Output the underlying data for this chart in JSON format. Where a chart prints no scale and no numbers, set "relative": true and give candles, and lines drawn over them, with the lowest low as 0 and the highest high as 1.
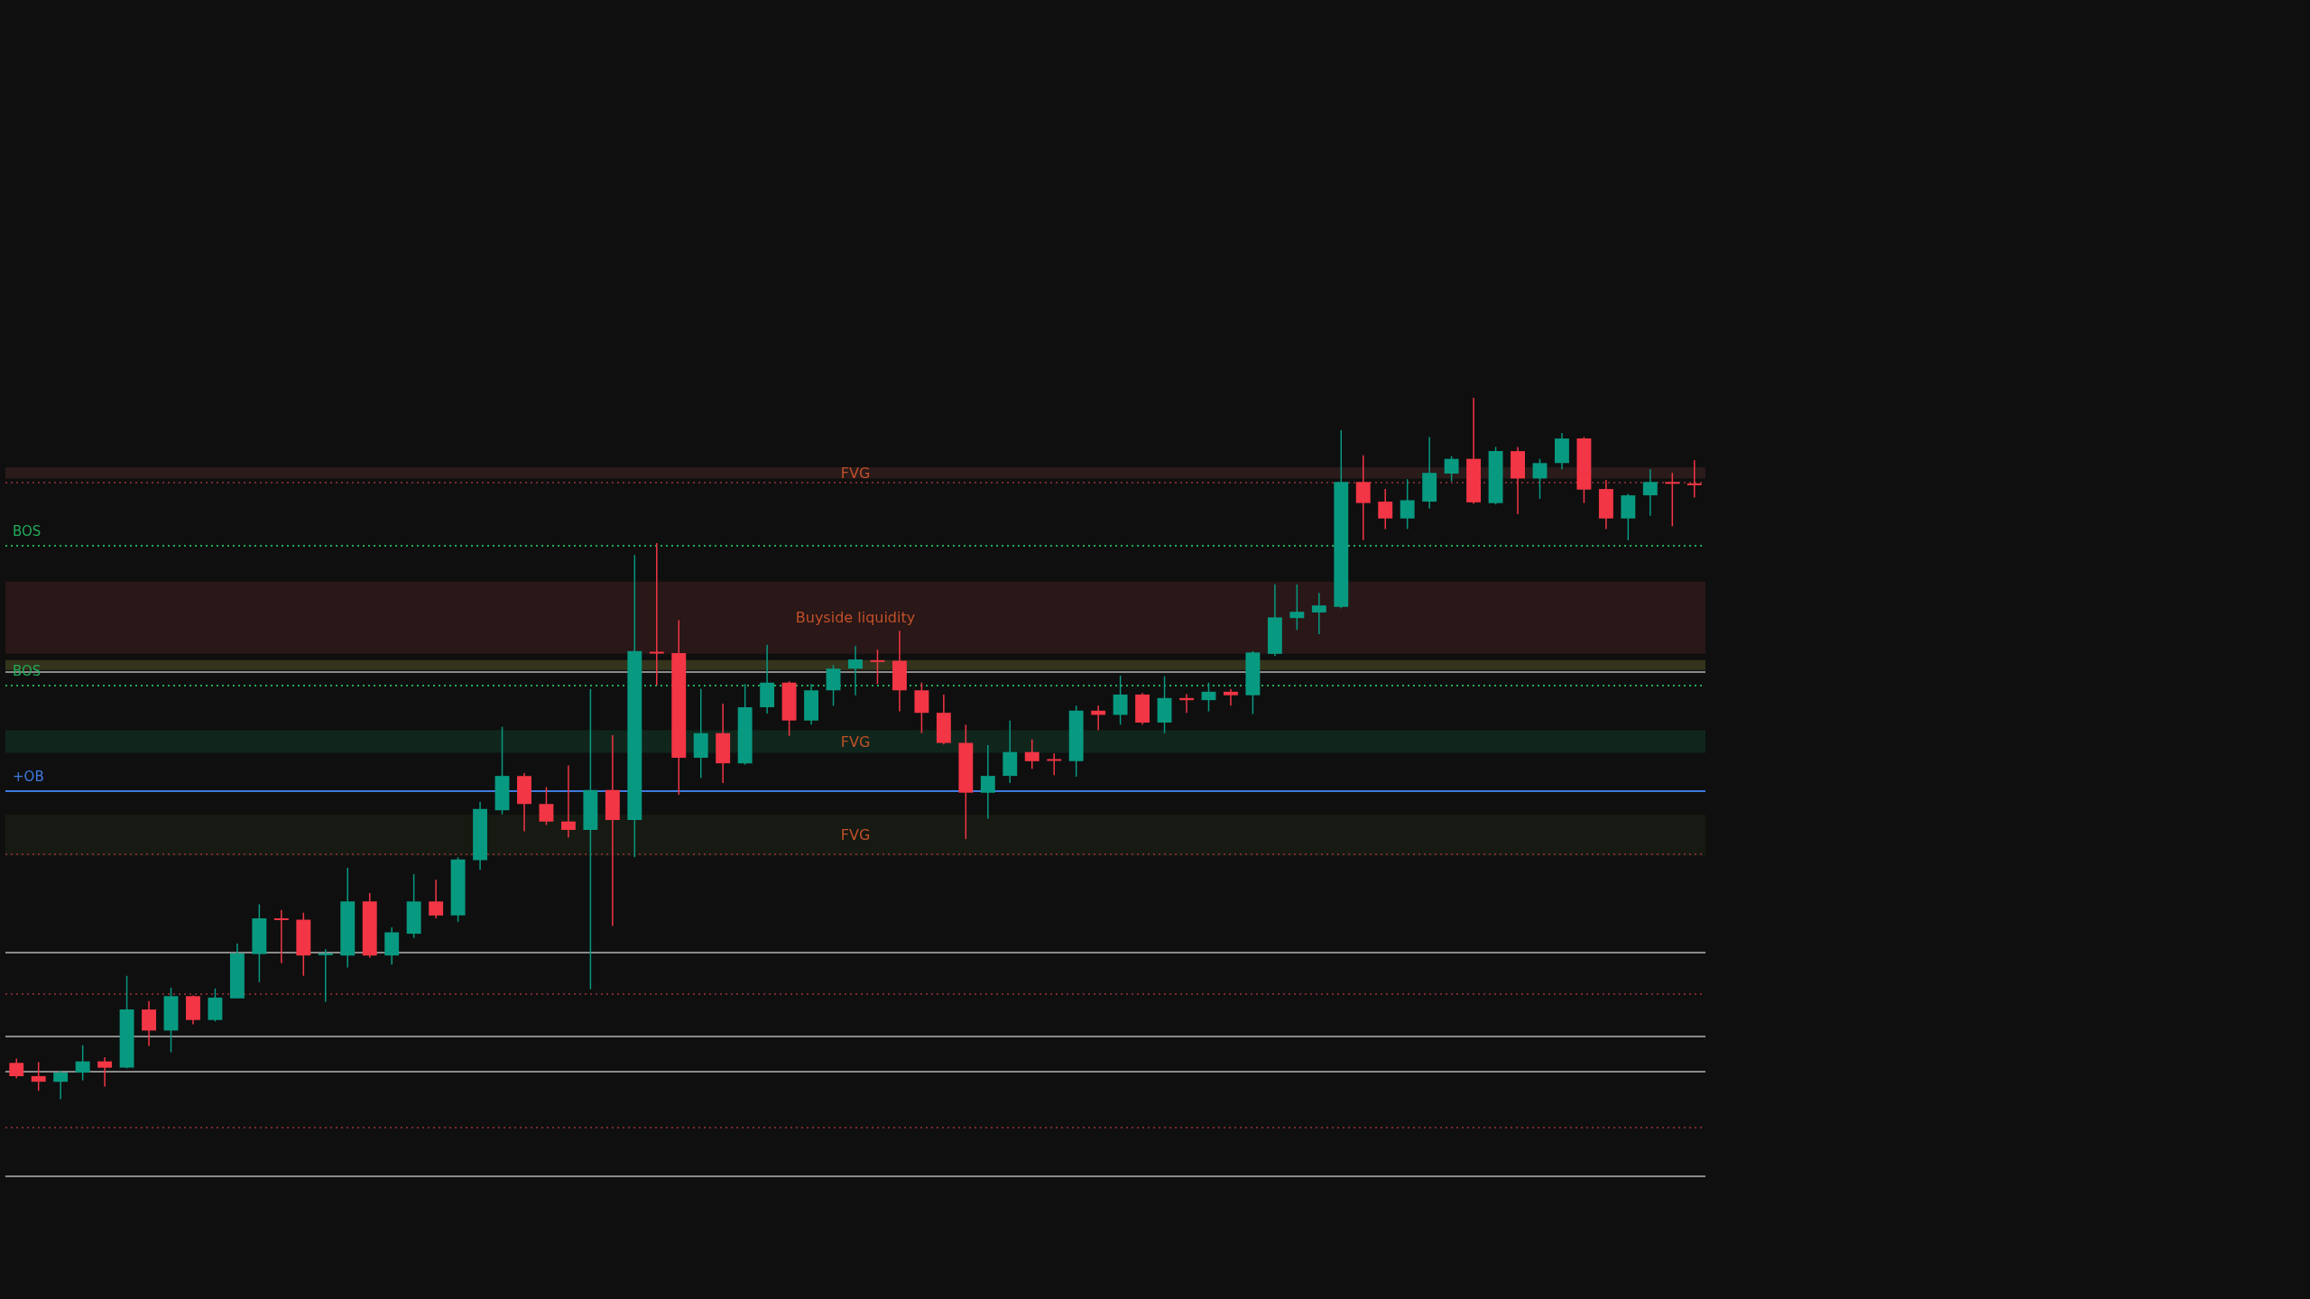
{
  "chart_data": {
    "type": "candlestick",
    "relative": true,
    "tick_labels": false,
    "categories": [
      null,
      null,
      null,
      null,
      null,
      null,
      null,
      null,
      null,
      null,
      null,
      null,
      null,
      null,
      null,
      null,
      null,
      null,
      null,
      null,
      null,
      null,
      null,
      null,
      null,
      null,
      null,
      null,
      null,
      null,
      null,
      null,
      null,
      null,
      null,
      null,
      null,
      null,
      null,
      null,
      null,
      null,
      null,
      null,
      null,
      null,
      null,
      null,
      null,
      null,
      null,
      null,
      null,
      null,
      null,
      null,
      null,
      null,
      null,
      null,
      null,
      null,
      null,
      null,
      null,
      null,
      null,
      null,
      null,
      null,
      null,
      null,
      null,
      null,
      null,
      null,
      null
    ],
    "ohlc": [
      [
        0.052,
        0.058,
        0.03,
        0.033
      ],
      [
        0.033,
        0.053,
        0.012,
        0.025
      ],
      [
        0.025,
        0.041,
        0,
        0.038
      ],
      [
        0.038,
        0.077,
        0.027,
        0.054
      ],
      [
        0.054,
        0.06,
        0.018,
        0.045
      ],
      [
        0.045,
        0.176,
        0.044,
        0.128
      ],
      [
        0.128,
        0.14,
        0.076,
        0.098
      ],
      [
        0.098,
        0.159,
        0.067,
        0.147
      ],
      [
        0.147,
        0.148,
        0.107,
        0.113
      ],
      [
        0.113,
        0.158,
        0.111,
        0.145
      ],
      [
        0.144,
        0.222,
        0.144,
        0.208
      ],
      [
        0.207,
        0.278,
        0.167,
        0.258
      ],
      [
        0.258,
        0.27,
        0.194,
        0.256
      ],
      [
        0.256,
        0.266,
        0.176,
        0.205
      ],
      [
        0.207,
        0.214,
        0.139,
        0.208
      ],
      [
        0.205,
        0.33,
        0.188,
        0.282
      ],
      [
        0.282,
        0.294,
        0.202,
        0.205
      ],
      [
        0.205,
        0.245,
        0.192,
        0.238
      ],
      [
        0.236,
        0.321,
        0.23,
        0.282
      ],
      [
        0.282,
        0.313,
        0.258,
        0.262
      ],
      [
        0.262,
        0.345,
        0.253,
        0.342
      ],
      [
        0.341,
        0.424,
        0.327,
        0.414
      ],
      [
        0.412,
        0.531,
        0.406,
        0.461
      ],
      [
        0.461,
        0.465,
        0.382,
        0.421
      ],
      [
        0.421,
        0.445,
        0.391,
        0.396
      ],
      [
        0.396,
        0.476,
        0.373,
        0.384
      ],
      [
        0.384,
        0.585,
        0.157,
        0.441
      ],
      [
        0.441,
        0.519,
        0.247,
        0.398
      ],
      [
        0.398,
        0.776,
        0.345,
        0.639
      ],
      [
        0.638,
        0.793,
        0.59,
        0.636
      ],
      [
        0.636,
        0.683,
        0.434,
        0.487
      ],
      [
        0.487,
        0.585,
        0.458,
        0.522
      ],
      [
        0.522,
        0.564,
        0.451,
        0.479
      ],
      [
        0.479,
        0.592,
        0.477,
        0.559
      ],
      [
        0.559,
        0.648,
        0.55,
        0.594
      ],
      [
        0.594,
        0.596,
        0.518,
        0.54
      ],
      [
        0.54,
        0.592,
        0.534,
        0.583
      ],
      [
        0.583,
        0.619,
        0.561,
        0.614
      ],
      [
        0.614,
        0.646,
        0.576,
        0.627
      ],
      [
        0.626,
        0.641,
        0.592,
        0.624
      ],
      [
        0.625,
        0.668,
        0.553,
        0.583
      ],
      [
        0.583,
        0.594,
        0.522,
        0.551
      ],
      [
        0.551,
        0.577,
        0.506,
        0.508
      ],
      [
        0.508,
        0.534,
        0.371,
        0.437
      ],
      [
        0.437,
        0.505,
        0.4,
        0.461
      ],
      [
        0.461,
        0.54,
        0.451,
        0.495
      ],
      [
        0.495,
        0.513,
        0.471,
        0.482
      ],
      [
        0.485,
        0.493,
        0.462,
        0.483
      ],
      [
        0.482,
        0.561,
        0.46,
        0.554
      ],
      [
        0.554,
        0.561,
        0.526,
        0.548
      ],
      [
        0.548,
        0.604,
        0.534,
        0.577
      ],
      [
        0.577,
        0.579,
        0.534,
        0.537
      ],
      [
        0.537,
        0.603,
        0.522,
        0.572
      ],
      [
        0.572,
        0.578,
        0.551,
        0.569
      ],
      [
        0.569,
        0.594,
        0.553,
        0.581
      ],
      [
        0.581,
        0.585,
        0.561,
        0.576
      ],
      [
        0.576,
        0.639,
        0.549,
        0.637
      ],
      [
        0.635,
        0.734,
        0.632,
        0.687
      ],
      [
        0.686,
        0.734,
        0.669,
        0.695
      ],
      [
        0.694,
        0.722,
        0.663,
        0.704
      ],
      [
        0.702,
        0.954,
        0.7,
        0.88
      ],
      [
        0.88,
        0.918,
        0.797,
        0.85
      ],
      [
        0.852,
        0.87,
        0.813,
        0.828
      ],
      [
        0.828,
        0.884,
        0.813,
        0.854
      ],
      [
        0.852,
        0.944,
        0.842,
        0.893
      ],
      [
        0.892,
        0.917,
        0.881,
        0.913
      ],
      [
        0.913,
        1,
        0.849,
        0.851
      ],
      [
        0.85,
        0.93,
        0.848,
        0.924
      ],
      [
        0.924,
        0.93,
        0.834,
        0.885
      ],
      [
        0.885,
        0.913,
        0.856,
        0.907
      ],
      [
        0.907,
        0.95,
        0.898,
        0.942
      ],
      [
        0.942,
        0.944,
        0.85,
        0.869
      ],
      [
        0.87,
        0.883,
        0.813,
        0.828
      ],
      [
        0.828,
        0.863,
        0.797,
        0.861
      ],
      [
        0.861,
        0.898,
        0.832,
        0.88
      ],
      [
        0.88,
        0.893,
        0.817,
        0.878
      ],
      [
        0.878,
        0.911,
        0.858,
        0.877
      ]
    ],
    "colors": [
      "#f23645",
      "#f23645",
      "#089981",
      "#089981",
      "#f23645",
      "#089981",
      "#f23645",
      "#089981",
      "#f23645",
      "#089981",
      "#089981",
      "#089981",
      "#f23645",
      "#f23645",
      "#089981",
      "#089981",
      "#f23645",
      "#089981",
      "#089981",
      "#f23645",
      "#089981",
      "#089981",
      "#089981",
      "#f23645",
      "#f23645",
      "#f23645",
      "#089981",
      "#f23645",
      "#089981",
      "#f23645",
      "#f23645",
      "#089981",
      "#f23645",
      "#089981",
      "#089981",
      "#f23645",
      "#089981",
      "#089981",
      "#089981",
      "#f23645",
      "#f23645",
      "#f23645",
      "#f23645",
      "#f23645",
      "#089981",
      "#089981",
      "#f23645",
      "#f23645",
      "#089981",
      "#f23645",
      "#089981",
      "#f23645",
      "#089981",
      "#f23645",
      "#089981",
      "#f23645",
      "#089981",
      "#089981",
      "#089981",
      "#089981",
      "#089981",
      "#f23645",
      "#f23645",
      "#089981",
      "#089981",
      "#089981",
      "#f23645",
      "#089981",
      "#f23645",
      "#089981",
      "#089981",
      "#f23645",
      "#f23645",
      "#089981",
      "#089981",
      "#f23645",
      "#f23645"
    ],
    "ref_lines": [
      {
        "axis": "y",
        "value": 0.876,
        "color": "#7a2a2e",
        "line_style": "dotted"
      },
      {
        "axis": "y",
        "value": 0.79,
        "label": "BOS",
        "color": "#22ab5a",
        "line_style": "dotted"
      },
      {
        "axis": "y",
        "value": 0.612,
        "color": "#8a8a8a",
        "line_style": "solid"
      },
      {
        "axis": "y",
        "value": 0.587,
        "label": "BOS",
        "color": "#22ab5a",
        "line_style": "dotted"
      },
      {
        "axis": "y",
        "value": 0.441,
        "label": "+OB",
        "color": "#3d7be0",
        "line_style": "solid"
      },
      {
        "axis": "y",
        "value": 0.351,
        "color": "#7a2a2e",
        "line_style": "dotted"
      },
      {
        "axis": "y",
        "value": 0.213,
        "color": "#8a8a8a",
        "line_style": "solid"
      },
      {
        "axis": "y",
        "value": 0.148,
        "color": "#7a2a2e",
        "line_style": "dotted"
      },
      {
        "axis": "y",
        "value": 0.087,
        "color": "#8a8a8a",
        "line_style": "solid"
      },
      {
        "axis": "y",
        "value": 0.036,
        "color": "#8a8a8a",
        "line_style": "solid"
      },
      {
        "axis": "y",
        "value": -0.037,
        "color": "#7a2a2e",
        "line_style": "dotted"
      },
      {
        "axis": "y",
        "value": -0.113,
        "color": "#8a8a8a",
        "line_style": "solid"
      }
    ],
    "bands": [
      {
        "axis": "y",
        "from": 0.885,
        "to": 0.901,
        "label": "FVG",
        "color": "#2a1a1a"
      },
      {
        "axis": "y",
        "from": 0.635,
        "to": 0.738,
        "label": "Buyside liquidity",
        "color": "#2a1717"
      },
      {
        "axis": "y",
        "from": 0.612,
        "to": 0.626,
        "color": "#34341c"
      },
      {
        "axis": "y",
        "from": 0.494,
        "to": 0.526,
        "label": "FVG",
        "color": "#10261c"
      },
      {
        "axis": "y",
        "from": 0.347,
        "to": 0.406,
        "label": "FVG",
        "color": "#161a12"
      }
    ]
  }
}
